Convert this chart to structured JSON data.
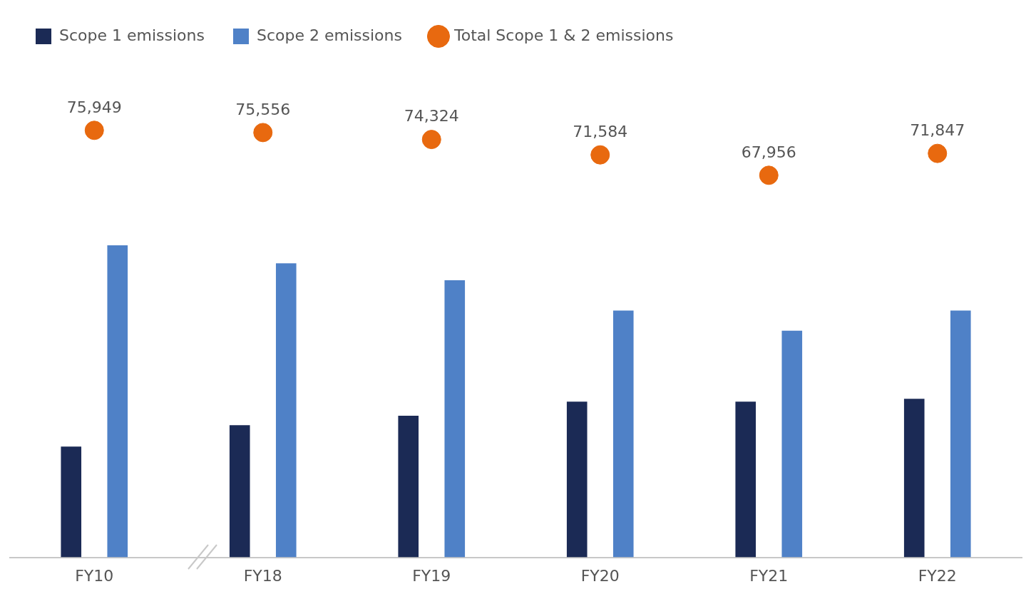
{
  "chart_data": {
    "type": "bar",
    "categories": [
      "FY10",
      "FY18",
      "FY19",
      "FY20",
      "FY21",
      "FY22"
    ],
    "tick_labels": "x",
    "grid": false,
    "legend": "top left",
    "series": [
      {
        "name": "Scope 1 emissions",
        "color": "#1b2a55",
        "values": [
          19700,
          23500,
          25200,
          27700,
          27700,
          28200
        ]
      },
      {
        "name": "Scope 2 emissions",
        "color": "#4f81c7",
        "values": [
          55500,
          52300,
          49300,
          43900,
          40300,
          43900
        ]
      },
      {
        "name": "Total Scope 1 & 2 emissions",
        "type": "scatter",
        "marker": "circle",
        "color": "#e8690f",
        "x": [
          "FY10",
          "FY18",
          "FY19",
          "FY20",
          "FY21",
          "FY22"
        ],
        "values": [
          75949,
          75556,
          74324,
          71584,
          67956,
          71847
        ],
        "value_labels": [
          "75,949",
          "75,556",
          "74,324",
          "71,584",
          "67,956",
          "71,847"
        ]
      }
    ]
  }
}
